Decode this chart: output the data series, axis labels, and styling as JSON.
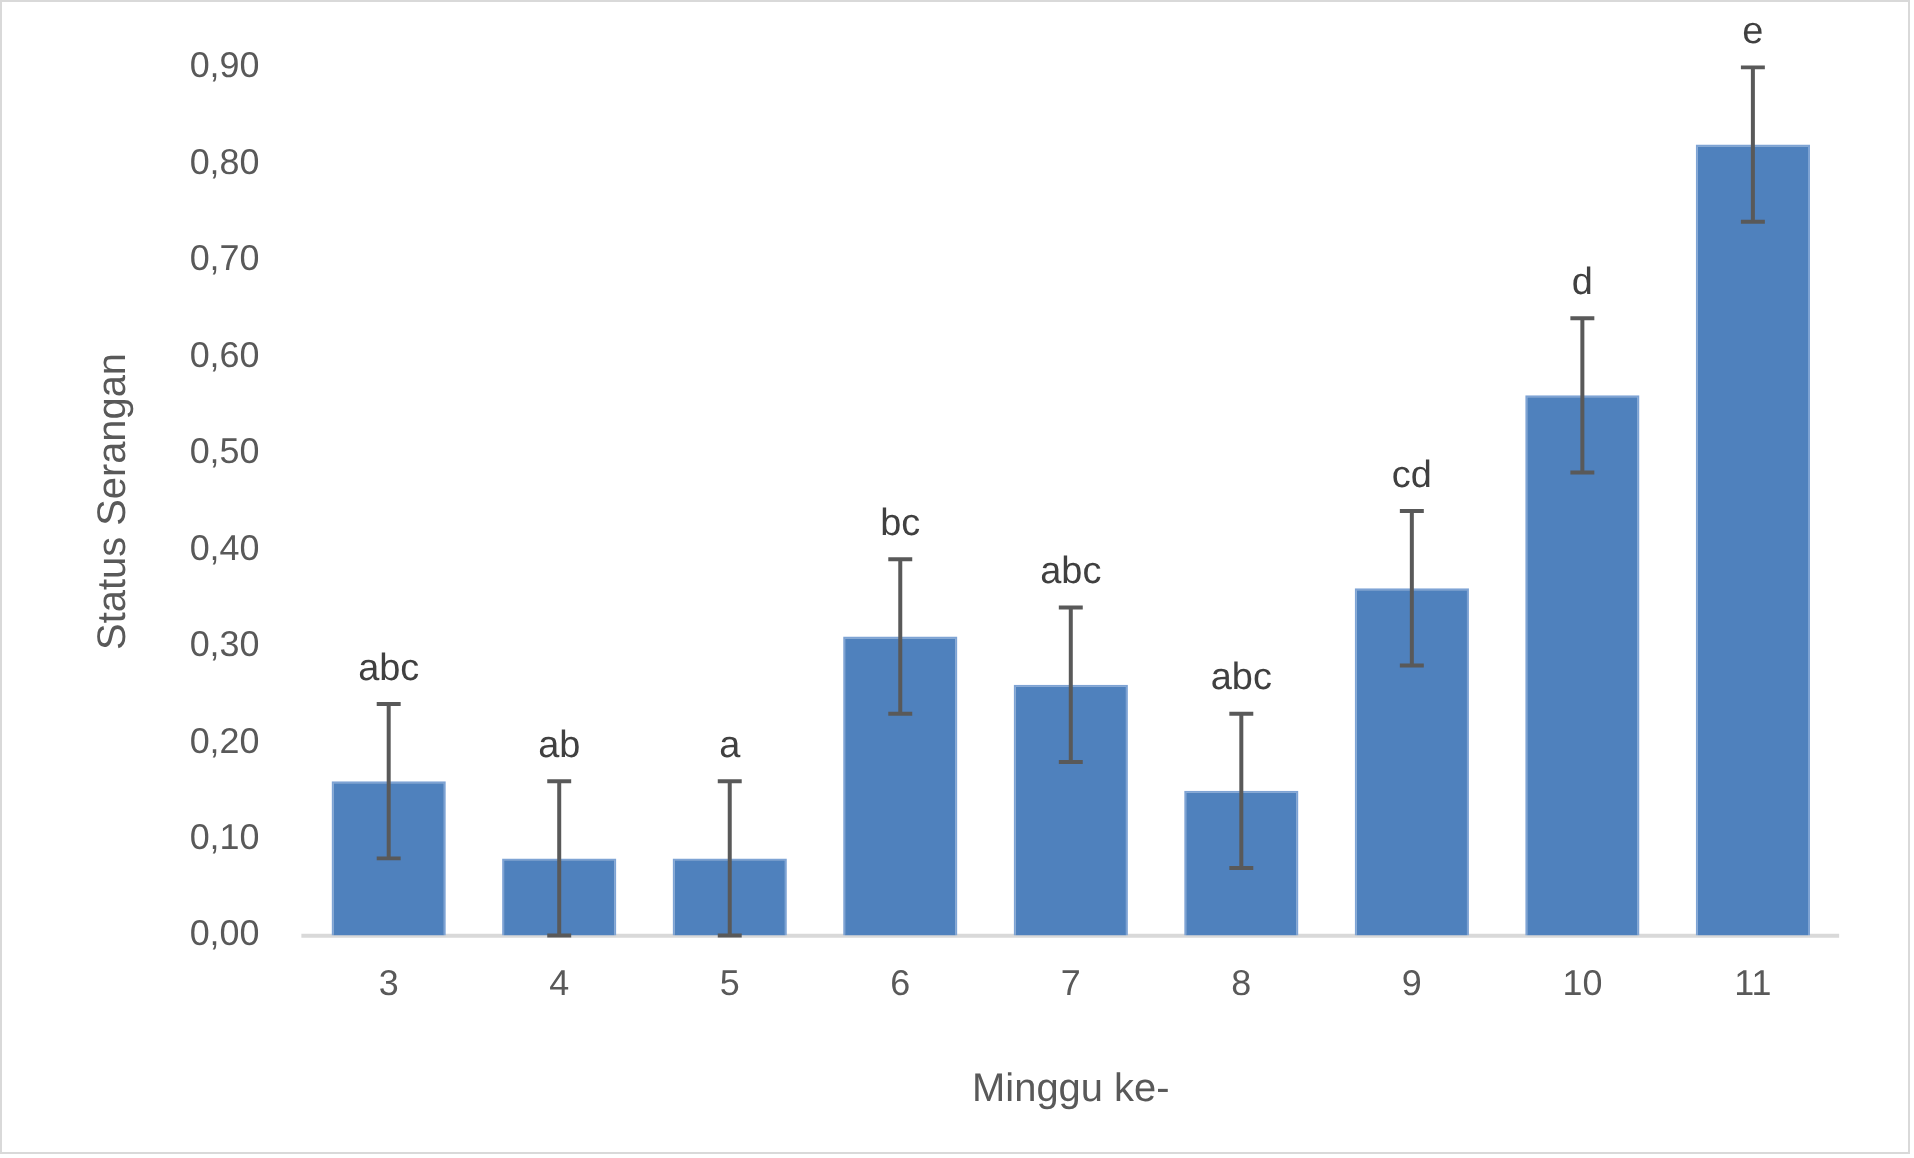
{
  "chart_data": {
    "type": "bar",
    "xlabel": "Minggu ke-",
    "ylabel": "Status Serangan",
    "categories": [
      "3",
      "4",
      "5",
      "6",
      "7",
      "8",
      "9",
      "10",
      "11"
    ],
    "values": [
      0.16,
      0.08,
      0.08,
      0.31,
      0.26,
      0.15,
      0.36,
      0.56,
      0.82
    ],
    "errors": [
      0.08,
      0.08,
      0.08,
      0.08,
      0.08,
      0.08,
      0.08,
      0.08,
      0.08
    ],
    "color": "#4f81bd",
    "ylim": [
      0,
      0.9
    ],
    "yticks": [
      {
        "value": 0,
        "label": "0,00"
      },
      {
        "value": 0.1,
        "label": "0,10"
      },
      {
        "value": 0.2,
        "label": "0,20"
      },
      {
        "value": 0.3,
        "label": "0,30"
      },
      {
        "value": 0.4,
        "label": "0,40"
      },
      {
        "value": 0.5,
        "label": "0,50"
      },
      {
        "value": 0.6,
        "label": "0,60"
      },
      {
        "value": 0.7,
        "label": "0,70"
      },
      {
        "value": 0.8,
        "label": "0,80"
      },
      {
        "value": 0.9,
        "label": "0,90"
      }
    ],
    "grid": false,
    "legend": false,
    "annotations": [
      {
        "text": "abc",
        "x": "3",
        "y": 0.24
      },
      {
        "text": "ab",
        "x": "4",
        "y": 0.16
      },
      {
        "text": "a",
        "x": "5",
        "y": 0.16
      },
      {
        "text": "bc",
        "x": "6",
        "y": 0.39
      },
      {
        "text": "abc",
        "x": "7",
        "y": 0.34
      },
      {
        "text": "abc",
        "x": "8",
        "y": 0.23
      },
      {
        "text": "cd",
        "x": "9",
        "y": 0.44
      },
      {
        "text": "d",
        "x": "10",
        "y": 0.64
      },
      {
        "text": "e",
        "x": "11",
        "y": 0.9
      }
    ]
  }
}
